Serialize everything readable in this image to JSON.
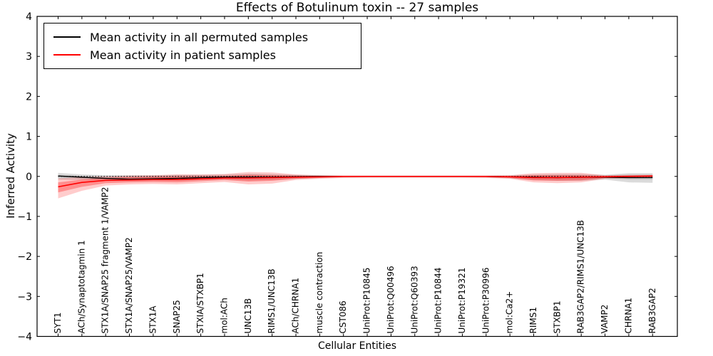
{
  "chart_data": {
    "type": "line",
    "title": "Effects of Botulinum toxin -- 27 samples",
    "xlabel": "Cellular Entities",
    "ylabel": "Inferred Activity",
    "ylim": [
      -4,
      4
    ],
    "yticks": [
      -4,
      -3,
      -2,
      -1,
      0,
      1,
      2,
      3,
      4
    ],
    "ytick_labels": [
      "−4",
      "−3",
      "−2",
      "−1",
      "0",
      "1",
      "2",
      "3",
      "4"
    ],
    "grid": false,
    "legend_position": "upper left",
    "background_color": "#ffffff",
    "zero_reference_line": {
      "y": 0,
      "style": "dotted",
      "color": "#000000"
    },
    "categories": [
      "SYT1",
      "ACh/Synaptotagmin 1",
      "STX1A/SNAP25 fragment 1/VAMP2",
      "STX1A/SNAP25/VAMP2",
      "STX1A",
      "SNAP25",
      "STXIA/STXBP1",
      "mol:ACh",
      "UNC13B",
      "RIMS1/UNC13B",
      "ACh/CHRNA1",
      "muscle contraction",
      "CST086",
      "UniProt:P10845",
      "UniProt:Q00496",
      "UniProt:Q60393",
      "UniProt:P10844",
      "UniProt:P19321",
      "UniProt:P30996",
      "mol:Ca2+",
      "RIMS1",
      "STXBP1",
      "RAB3GAP2/RIMS1/UNC13B",
      "VAMP2",
      "CHRNA1",
      "RAB3GAP2"
    ],
    "series": [
      {
        "name": "Mean activity in all permuted samples",
        "color": "#000000",
        "style": "solid",
        "values": [
          0.01,
          -0.02,
          -0.05,
          -0.07,
          -0.06,
          -0.05,
          -0.03,
          -0.02,
          -0.02,
          -0.02,
          -0.01,
          0.0,
          0.0,
          0.0,
          0.0,
          0.0,
          0.0,
          0.0,
          0.0,
          -0.01,
          -0.02,
          -0.03,
          -0.02,
          -0.02,
          -0.03,
          -0.03
        ]
      },
      {
        "name": "Mean activity in patient samples",
        "color": "#ff0000",
        "style": "solid",
        "values": [
          -0.26,
          -0.15,
          -0.1,
          -0.09,
          -0.08,
          -0.08,
          -0.06,
          -0.04,
          -0.04,
          -0.03,
          -0.02,
          -0.01,
          0.0,
          0.0,
          0.0,
          0.0,
          0.0,
          0.0,
          0.0,
          -0.01,
          -0.03,
          -0.03,
          -0.02,
          -0.01,
          0.0,
          0.01
        ]
      }
    ],
    "bands": [
      {
        "name": "permuted-samples-range-outer",
        "color": "#999999",
        "opacity": 0.35,
        "upper": [
          0.09,
          0.05,
          0.03,
          0.03,
          0.03,
          0.04,
          0.04,
          0.05,
          0.07,
          0.06,
          0.04,
          0.03,
          0.02,
          0.02,
          0.02,
          0.02,
          0.02,
          0.02,
          0.02,
          0.03,
          0.05,
          0.06,
          0.06,
          0.04,
          0.08,
          0.08
        ],
        "lower": [
          -0.08,
          -0.09,
          -0.1,
          -0.11,
          -0.1,
          -0.1,
          -0.09,
          -0.08,
          -0.1,
          -0.09,
          -0.06,
          -0.04,
          -0.03,
          -0.03,
          -0.03,
          -0.03,
          -0.03,
          -0.03,
          -0.03,
          -0.05,
          -0.09,
          -0.11,
          -0.11,
          -0.08,
          -0.15,
          -0.16
        ]
      },
      {
        "name": "permuted-samples-range-inner",
        "color": "#999999",
        "opacity": 0.3,
        "upper": [
          0.04,
          0.02,
          0.01,
          0.01,
          0.01,
          0.02,
          0.02,
          0.02,
          0.03,
          0.03,
          0.02,
          0.01,
          0.01,
          0.01,
          0.01,
          0.01,
          0.01,
          0.01,
          0.01,
          0.01,
          0.02,
          0.03,
          0.03,
          0.02,
          0.04,
          0.04
        ],
        "lower": [
          -0.04,
          -0.05,
          -0.06,
          -0.06,
          -0.06,
          -0.06,
          -0.05,
          -0.04,
          -0.05,
          -0.05,
          -0.03,
          -0.02,
          -0.01,
          -0.01,
          -0.01,
          -0.01,
          -0.01,
          -0.01,
          -0.01,
          -0.02,
          -0.05,
          -0.06,
          -0.06,
          -0.04,
          -0.08,
          -0.08
        ]
      },
      {
        "name": "patient-samples-range-outer",
        "color": "#ff0000",
        "opacity": 0.2,
        "upper": [
          -0.05,
          -0.02,
          0.0,
          0.02,
          0.03,
          0.05,
          0.05,
          0.06,
          0.11,
          0.1,
          0.05,
          0.03,
          0.02,
          0.02,
          0.02,
          0.02,
          0.02,
          0.02,
          0.02,
          0.03,
          0.08,
          0.09,
          0.09,
          0.03,
          0.04,
          0.04
        ],
        "lower": [
          -0.55,
          -0.36,
          -0.23,
          -0.2,
          -0.19,
          -0.2,
          -0.17,
          -0.14,
          -0.2,
          -0.18,
          -0.09,
          -0.06,
          -0.04,
          -0.03,
          -0.03,
          -0.03,
          -0.03,
          -0.03,
          -0.04,
          -0.06,
          -0.15,
          -0.17,
          -0.15,
          -0.06,
          -0.05,
          -0.04
        ]
      },
      {
        "name": "patient-samples-range-inner",
        "color": "#ff0000",
        "opacity": 0.3,
        "upper": [
          -0.15,
          -0.08,
          -0.04,
          -0.02,
          -0.01,
          0.0,
          0.0,
          0.01,
          0.04,
          0.03,
          0.02,
          0.01,
          0.01,
          0.01,
          0.01,
          0.01,
          0.01,
          0.01,
          0.01,
          0.01,
          0.03,
          0.03,
          0.03,
          0.01,
          0.02,
          0.02
        ],
        "lower": [
          -0.4,
          -0.26,
          -0.17,
          -0.15,
          -0.14,
          -0.15,
          -0.12,
          -0.09,
          -0.13,
          -0.11,
          -0.06,
          -0.04,
          -0.02,
          -0.02,
          -0.02,
          -0.02,
          -0.02,
          -0.02,
          -0.02,
          -0.04,
          -0.1,
          -0.11,
          -0.1,
          -0.04,
          -0.03,
          -0.03
        ]
      }
    ]
  }
}
